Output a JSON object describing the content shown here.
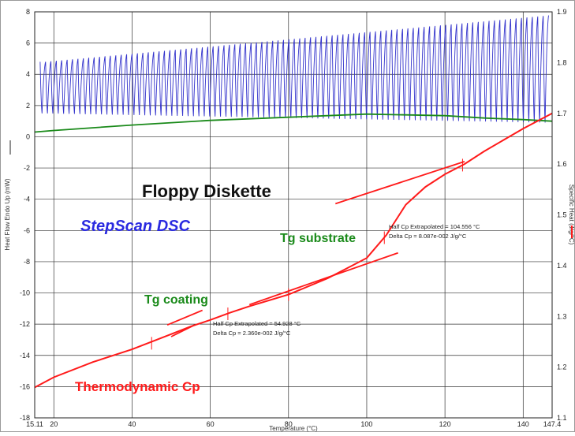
{
  "chart_data": {
    "type": "line",
    "title": "Floppy Diskette",
    "subtitle": "StepScan DSC",
    "xlabel": "Temperature (°C)",
    "ylabel_left": "Heat Flow Endo Up (mW)",
    "ylabel_right": "Specific Heat (J/g/°C)",
    "xlim": [
      15.11,
      147.4
    ],
    "ylim_left": [
      -18,
      8
    ],
    "ylim_right": [
      1.1,
      1.9
    ],
    "x_ticks": [
      "15.11",
      "20",
      "40",
      "60",
      "80",
      "100",
      "120",
      "140",
      "147.4"
    ],
    "y_left_ticks": [
      "8",
      "6",
      "4",
      "2",
      "0",
      "-2",
      "-4",
      "-6",
      "-8",
      "-10",
      "-12",
      "-14",
      "-16",
      "-18"
    ],
    "y_right_ticks": [
      "1.9",
      "1.8",
      "1.7",
      "1.6",
      "1.5",
      "1.4",
      "1.3",
      "1.2",
      "1.1"
    ],
    "grid": true,
    "colors": {
      "heat_flow": "#3333cc",
      "baseline": "#1a8a1a",
      "cp": "#ff1a1a",
      "title": "#111111",
      "subtitle": "#2a2ae0",
      "annotation": "#1a8a1a"
    },
    "series": [
      {
        "name": "",
        "axis": "left",
        "kind": "oscillation",
        "x_start": 16.5,
        "x_end": 146.5,
        "cycles": 94,
        "upper_start": 4.8,
        "upper_end": 7.8,
        "lower_start": 1.5,
        "lower_end": 0.9
      },
      {
        "name": "",
        "axis": "left",
        "x": [
          15.11,
          20,
          40,
          60,
          80,
          100,
          110,
          120,
          130,
          140,
          147.4
        ],
        "y": [
          0.3,
          0.4,
          0.75,
          1.05,
          1.25,
          1.45,
          1.4,
          1.35,
          1.2,
          1.1,
          1.0
        ]
      },
      {
        "name": "Thermodynamic Cp",
        "axis": "right",
        "x": [
          15.11,
          20,
          30,
          40,
          45,
          50,
          55,
          60,
          65,
          70,
          80,
          90,
          100,
          105,
          110,
          115,
          120,
          125,
          130,
          140,
          147.4
        ],
        "y": [
          1.16,
          1.18,
          1.21,
          1.235,
          1.25,
          1.265,
          1.28,
          1.293,
          1.307,
          1.32,
          1.343,
          1.375,
          1.415,
          1.46,
          1.52,
          1.555,
          1.58,
          1.6,
          1.625,
          1.67,
          1.7
        ]
      }
    ],
    "tangent_lines": [
      {
        "x": [
          49,
          58
        ],
        "y": [
          1.283,
          1.312
        ]
      },
      {
        "x": [
          50,
          56
        ],
        "y": [
          1.26,
          1.283
        ]
      },
      {
        "x": [
          70,
          108
        ],
        "y": [
          1.323,
          1.425
        ]
      },
      {
        "x": [
          92,
          125
        ],
        "y": [
          1.522,
          1.605
        ]
      }
    ],
    "tick_marks": [
      {
        "x": 45,
        "y": 1.247
      },
      {
        "x": 64.5,
        "y": 1.305
      },
      {
        "x": 80,
        "y": 1.343
      },
      {
        "x": 104.5,
        "y": 1.455
      },
      {
        "x": 124.5,
        "y": 1.598
      }
    ],
    "annotations": {
      "tg_substrate": "Tg substrate",
      "tg_coating": "Tg coating",
      "cp_label": "Thermodynamic Cp",
      "note1_line1": "Half Cp Extrapolated = 104.556 °C",
      "note1_line2": "Delta Cp = 8.087e-002 J/g/°C",
      "note2_line1": "Half Cp Extrapolated = 54.928 °C",
      "note2_line2": "Delta Cp = 2.360e-002 J/g/°C"
    }
  }
}
